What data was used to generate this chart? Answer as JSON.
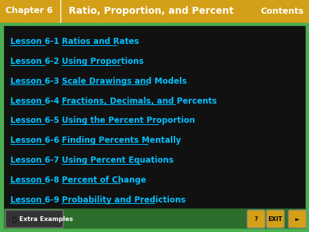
{
  "header_bg": "#D4A017",
  "header_text_left": "Chapter 6",
  "header_text_mid": "Ratio, Proportion, and Percent",
  "header_text_right": "Contents",
  "header_text_color": "#1a1a1a",
  "main_bg": "#111111",
  "border_color": "#4CAF50",
  "link_color": "#00BFFF",
  "lessons": [
    [
      "Lesson 6-1",
      "Ratios and Rates"
    ],
    [
      "Lesson 6-2",
      "Using Proportions"
    ],
    [
      "Lesson 6-3",
      "Scale Drawings and Models"
    ],
    [
      "Lesson 6-4",
      "Fractions, Decimals, and Percents"
    ],
    [
      "Lesson 6-5",
      "Using the Percent Proportion"
    ],
    [
      "Lesson 6-6",
      "Finding Percents Mentally"
    ],
    [
      "Lesson 6-7",
      "Using Percent Equations"
    ],
    [
      "Lesson 6-8",
      "Percent of Change"
    ],
    [
      "Lesson 6-9",
      "Probability and Predictions"
    ]
  ],
  "footer_bg": "#4CAF50",
  "footer_text": "Extra Examples",
  "footer_text_color": "#000000",
  "fig_width": 4.5,
  "fig_height": 3.38,
  "dpi": 100
}
